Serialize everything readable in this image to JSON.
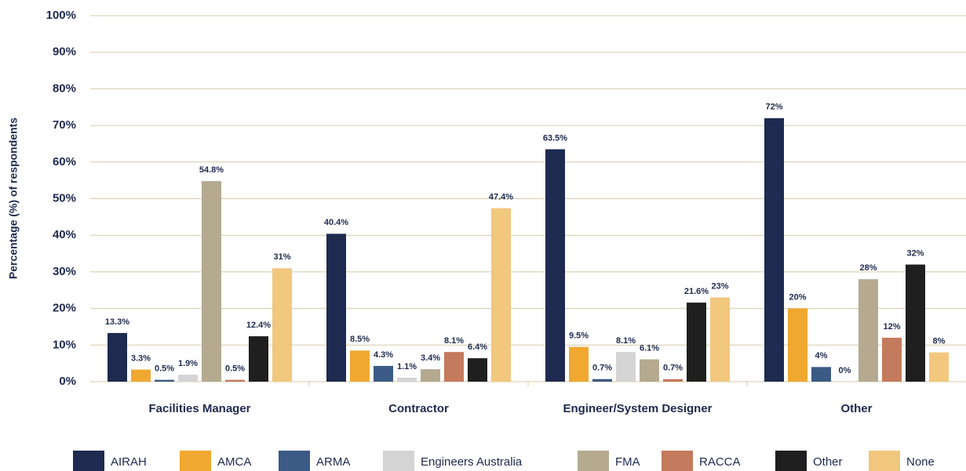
{
  "chart_data": {
    "type": "bar",
    "y_label": "Percentage (%) of respondents",
    "categories": [
      "Facilities Manager",
      "Contractor",
      "Engineer/System Designer",
      "Other"
    ],
    "series": [
      {
        "name": "AIRAH",
        "color": "#1e2a4f",
        "values": [
          13.3,
          40.4,
          63.5,
          72
        ],
        "value_labels": [
          "13.3%",
          "40.4%",
          "63.5%",
          "72%"
        ]
      },
      {
        "name": "AMCA",
        "color": "#f0a830",
        "values": [
          3.3,
          8.5,
          9.5,
          20
        ],
        "value_labels": [
          "3.3%",
          "8.5%",
          "9.5%",
          "20%"
        ]
      },
      {
        "name": "ARMA",
        "color": "#3b5a85",
        "values": [
          0.5,
          4.3,
          0.7,
          4
        ],
        "value_labels": [
          "0.5%",
          "4.3%",
          "0.7%",
          "4%"
        ]
      },
      {
        "name": "Engineers Australia",
        "color": "#d4d4d4",
        "values": [
          1.9,
          1.1,
          8.1,
          0
        ],
        "value_labels": [
          "1.9%",
          "1.1%",
          "8.1%",
          "0%"
        ]
      },
      {
        "name": "FMA",
        "color": "#b5aa90",
        "values": [
          54.8,
          3.4,
          6.1,
          28
        ],
        "value_labels": [
          "54.8%",
          "3.4%",
          "6.1%",
          "28%"
        ]
      },
      {
        "name": "RACCA",
        "color": "#c47a5c",
        "values": [
          0.5,
          8.1,
          0.7,
          12
        ],
        "value_labels": [
          "0.5%",
          "8.1%",
          "0.7%",
          "12%"
        ]
      },
      {
        "name": "Other",
        "color": "#1f1f1f",
        "values": [
          12.4,
          6.4,
          21.6,
          32
        ],
        "value_labels": [
          "12.4%",
          "6.4%",
          "21.6%",
          "32%"
        ]
      },
      {
        "name": "None",
        "color": "#f2c77e",
        "values": [
          31,
          47.4,
          23,
          8
        ],
        "value_labels": [
          "31%",
          "47.4%",
          "23%",
          "8%"
        ]
      }
    ],
    "ylim": [
      0,
      100
    ],
    "yticks": [
      {
        "value": 0,
        "label": "0%"
      },
      {
        "value": 10,
        "label": "10%"
      },
      {
        "value": 20,
        "label": "20%"
      },
      {
        "value": 30,
        "label": "30%"
      },
      {
        "value": 40,
        "label": "40%"
      },
      {
        "value": 50,
        "label": "50%"
      },
      {
        "value": 60,
        "label": "60%"
      },
      {
        "value": 70,
        "label": "70%"
      },
      {
        "value": 80,
        "label": "80%"
      },
      {
        "value": 90,
        "label": "90%"
      },
      {
        "value": 100,
        "label": "100%"
      }
    ],
    "grid": true,
    "legend": "bottom"
  }
}
